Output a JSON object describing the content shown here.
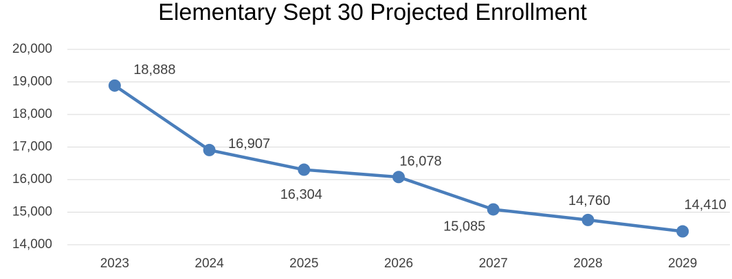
{
  "chart_data": {
    "type": "line",
    "title": "Elementary Sept 30 Projected Enrollment",
    "categories": [
      "2023",
      "2024",
      "2025",
      "2026",
      "2027",
      "2028",
      "2029"
    ],
    "series": [
      {
        "name": "Projected Enrollment",
        "color": "#4a7ebb",
        "values": [
          18888,
          16907,
          16304,
          16078,
          15085,
          14760,
          14410
        ],
        "value_labels": [
          "18,888",
          "16,907",
          "16,304",
          "16,078",
          "15,085",
          "14,760",
          "14,410"
        ]
      }
    ],
    "ylim": [
      14000,
      20000
    ],
    "yticks": [
      {
        "value": 14000,
        "label": "14,000"
      },
      {
        "value": 15000,
        "label": "15,000"
      },
      {
        "value": 16000,
        "label": "16,000"
      },
      {
        "value": 17000,
        "label": "17,000"
      },
      {
        "value": 18000,
        "label": "18,000"
      },
      {
        "value": 19000,
        "label": "19,000"
      },
      {
        "value": 20000,
        "label": "20,000"
      }
    ],
    "grid": true
  }
}
